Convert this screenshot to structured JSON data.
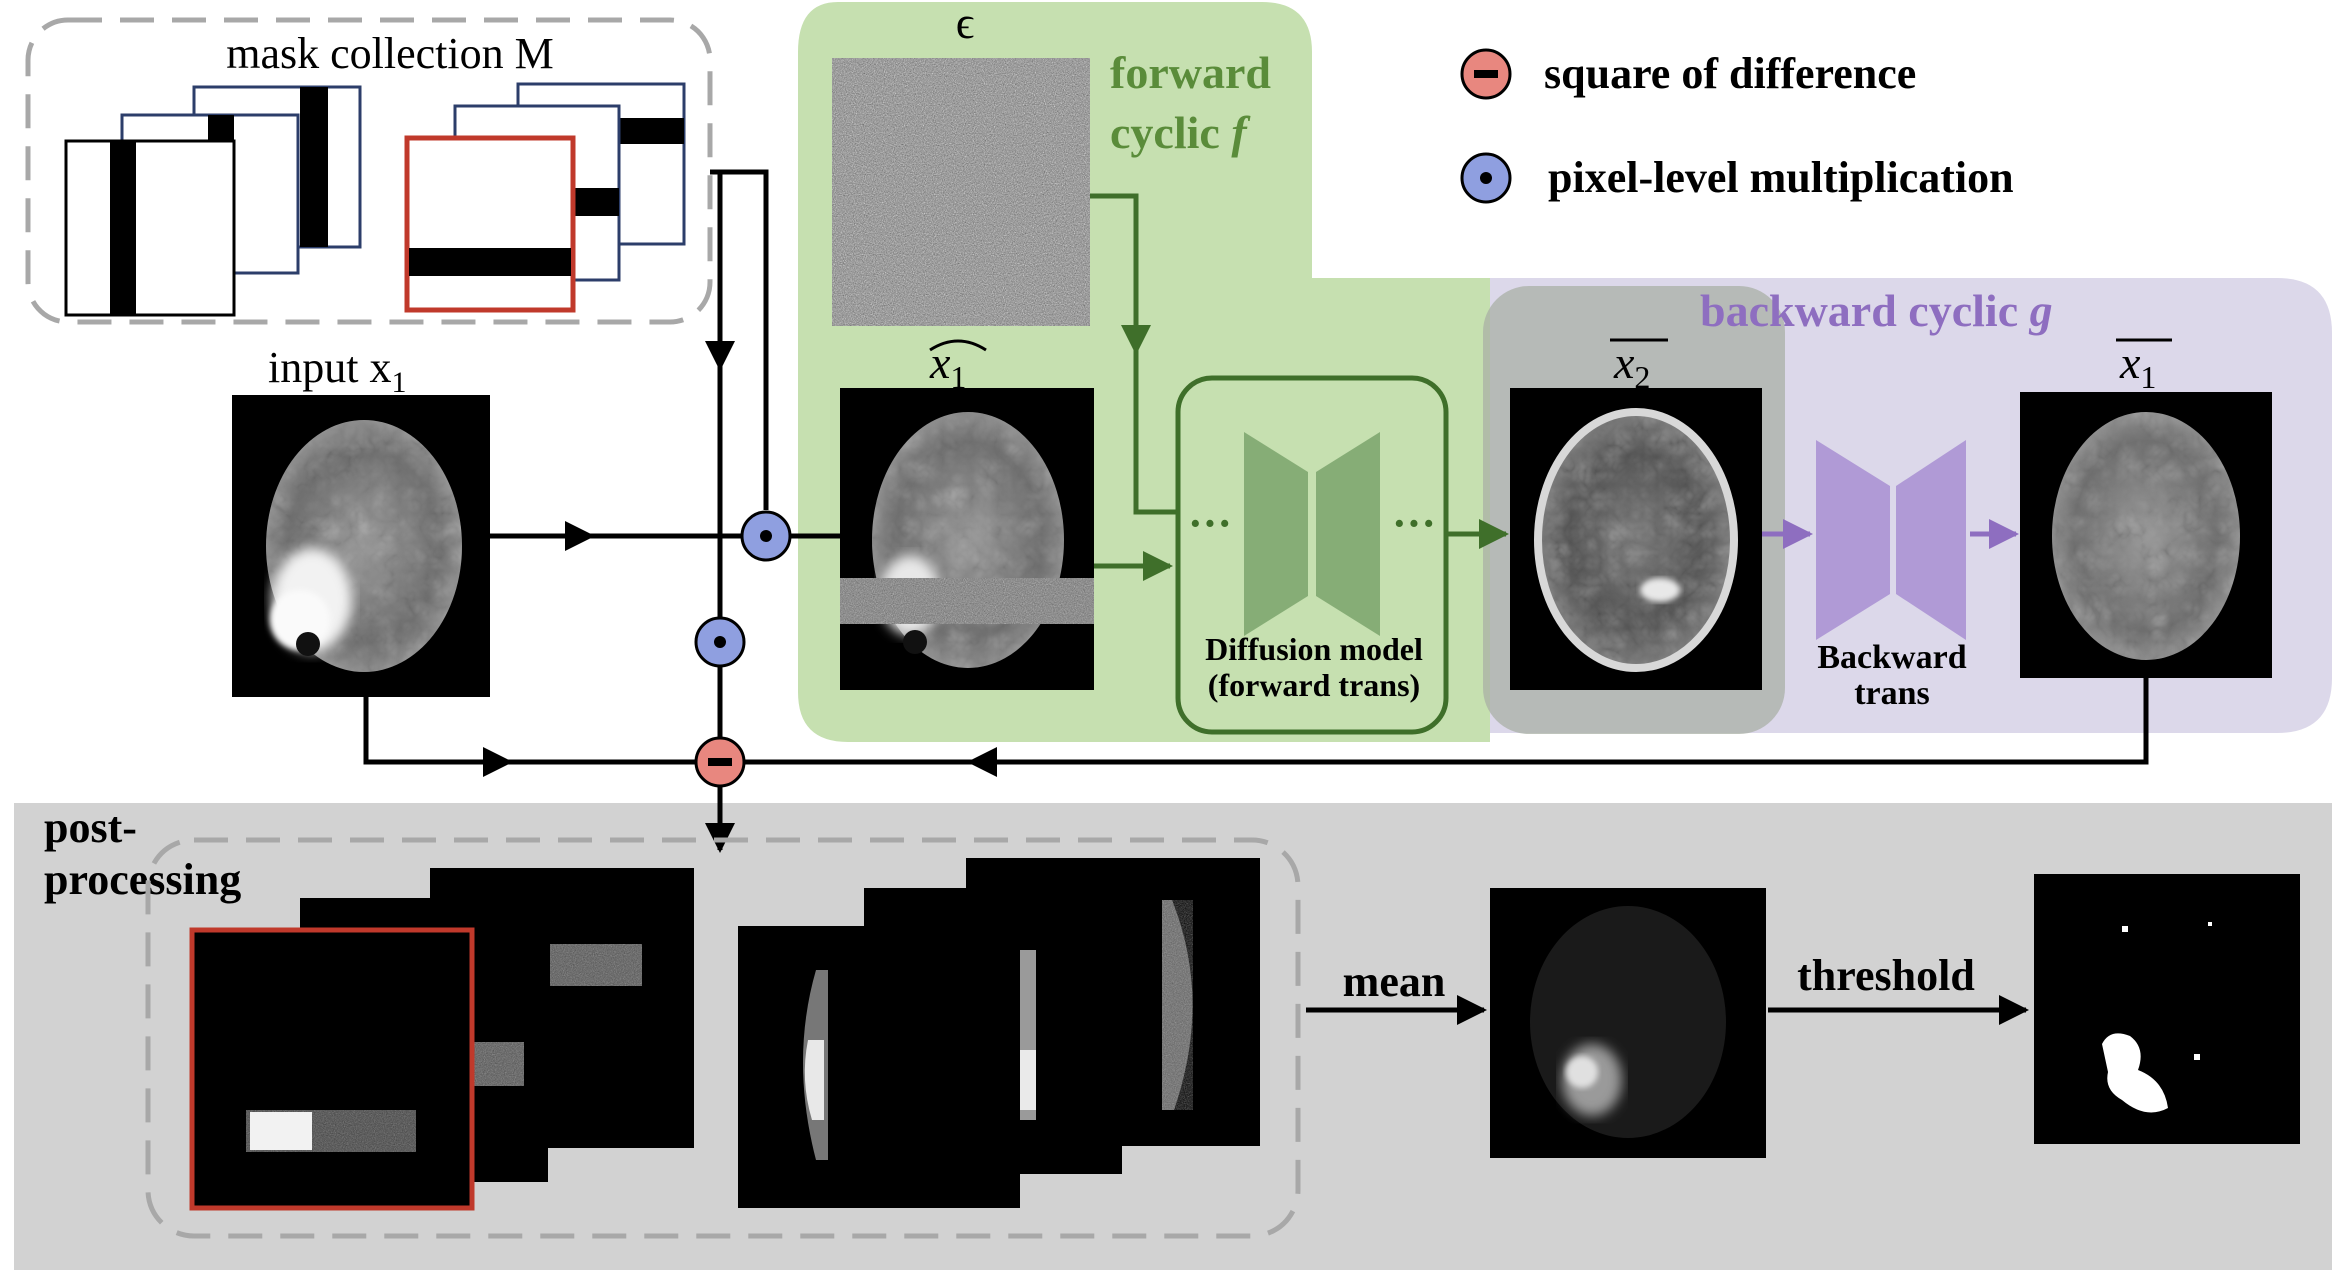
{
  "labels": {
    "mask_collection": "mask collection M",
    "input": "input x",
    "input_sub": "1",
    "epsilon": "ϵ",
    "x1_hat": "x",
    "x1_hat_sub": "1",
    "forward_cyclic_line1": "forward",
    "forward_cyclic_line2": "cyclic ",
    "forward_cyclic_f": "f",
    "backward_cyclic": "backward cyclic ",
    "backward_cyclic_g": "g",
    "x2_bar": "x",
    "x2_bar_sub": "2",
    "x1_bar": "x",
    "x1_bar_sub": "1",
    "diffusion_line1": "Diffusion model",
    "diffusion_line2": "(forward trans)",
    "backward_trans_line1": "Backward",
    "backward_trans_line2": "trans",
    "post_processing_line1": "post-",
    "post_processing_line2": "processing",
    "mean": "mean",
    "threshold": "threshold",
    "dots_left": "···",
    "dots_right": "···"
  },
  "legend": {
    "difference": {
      "symbol": "minus",
      "label": "square of difference",
      "color": "#e8877f"
    },
    "multiplication": {
      "symbol": "dot",
      "label": "pixel-level multiplication",
      "color": "#8f9fe0"
    }
  },
  "colors": {
    "forward_panel": "#c6e0b0",
    "forward_text": "#5a8c3a",
    "forward_arrow": "#3f6f2a",
    "backward_panel": "#dcd8ea",
    "backward_text": "#8e6ec0",
    "backward_shape": "#b09ad6",
    "diffusion_shape": "#86ad76",
    "post_panel": "#d2d2d2",
    "highlight_red": "#c0392b",
    "mask_border": "#2c3e6a"
  }
}
